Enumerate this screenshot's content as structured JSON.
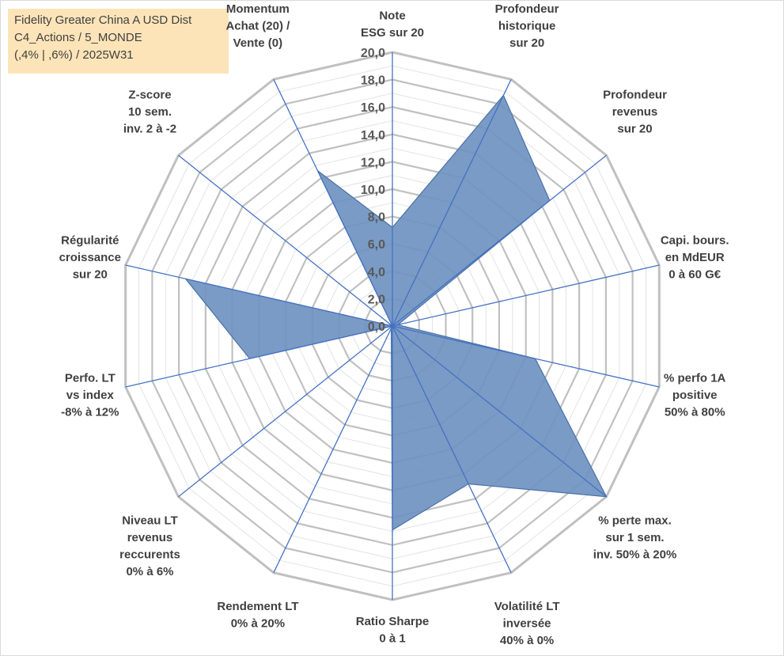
{
  "title_lines": [
    "Fidelity Greater China A USD Dist",
    "C4_Actions / 5_MONDE",
    "(,4% | ,6%) / 2025W31"
  ],
  "chart_data": {
    "type": "radar",
    "rmin": 0,
    "rmax": 20,
    "ticks": [
      "0,0",
      "2,0",
      "4,0",
      "6,0",
      "8,0",
      "10,0",
      "12,0",
      "14,0",
      "16,0",
      "18,0",
      "20,0"
    ],
    "axes": [
      {
        "label": [
          "Note",
          "ESG sur 20"
        ],
        "value": 7.2
      },
      {
        "label": [
          "Profondeur",
          "historique",
          "sur 20"
        ],
        "value": 18.7
      },
      {
        "label": [
          "Profondeur",
          "revenus",
          "sur 20"
        ],
        "value": 14.7
      },
      {
        "label": [
          "Capi. bours.",
          "en MdEUR",
          "0 à 60 G€"
        ],
        "value": 0.4
      },
      {
        "label": [
          "% perfo 1A",
          "positive",
          "50% à 80%"
        ],
        "value": 10.7
      },
      {
        "label": [
          "% perte max.",
          "sur 1 sem.",
          "inv. 50% à 20%"
        ],
        "value": 20.0
      },
      {
        "label": [
          "Volatilité LT",
          "inversée",
          "40% à 0%"
        ],
        "value": 12.8
      },
      {
        "label": [
          "Ratio Sharpe",
          "0 à 1"
        ],
        "value": 14.9
      },
      {
        "label": [
          "Rendement LT",
          "0% à 20%"
        ],
        "value": 0.2
      },
      {
        "label": [
          "Niveau LT",
          "revenus",
          "reccurents",
          "0% à 6%"
        ],
        "value": 0.0
      },
      {
        "label": [
          "Perfo. LT",
          "vs index",
          "-8% à 12%"
        ],
        "value": 10.7
      },
      {
        "label": [
          "Régularité",
          "croissance",
          "sur 20"
        ],
        "value": 15.5
      },
      {
        "label": [
          "Z-score",
          "10 sem.",
          "inv. 2 à -2"
        ],
        "value": 0.0
      },
      {
        "label": [
          "Momentum",
          "Achat (20) /",
          "Vente (0)"
        ],
        "value": 12.6
      }
    ],
    "colors": {
      "fill": "#6f93c0",
      "fill_stroke": "#4a72a8",
      "spoke": "#4472c4",
      "grid_major": "#c0c0c0",
      "grid_minor": "#e3e3e3"
    }
  }
}
